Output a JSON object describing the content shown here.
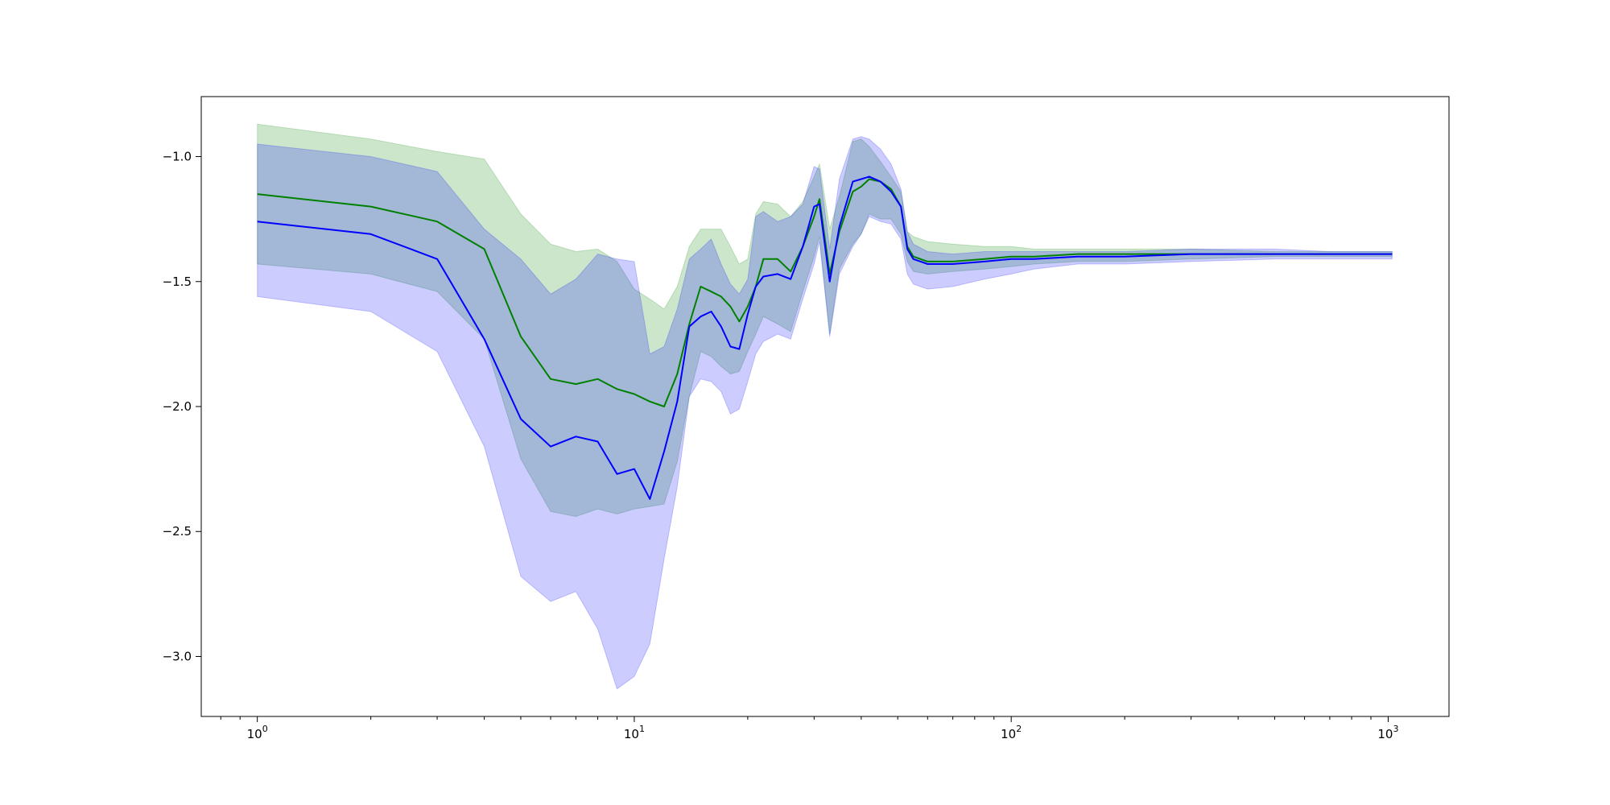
{
  "chart_data": {
    "type": "line",
    "title": "",
    "xlabel": "",
    "ylabel": "",
    "xscale": "log",
    "xlim": [
      0.71,
      1450
    ],
    "ylim": [
      -3.24,
      -0.76
    ],
    "grid": false,
    "legend": "none",
    "x_ticks": [
      {
        "value": 1,
        "base": "10",
        "exp": "0"
      },
      {
        "value": 10,
        "base": "10",
        "exp": "1"
      },
      {
        "value": 100,
        "base": "10",
        "exp": "2"
      },
      {
        "value": 1000,
        "base": "10",
        "exp": "3"
      }
    ],
    "y_ticks": [
      {
        "value": -1.0,
        "label": "−1.0"
      },
      {
        "value": -1.5,
        "label": "−1.5"
      },
      {
        "value": -2.0,
        "label": "−2.0"
      },
      {
        "value": -2.5,
        "label": "−2.5"
      },
      {
        "value": -3.0,
        "label": "−3.0"
      }
    ],
    "series": [
      {
        "color": "#008000",
        "band_color": "#008000",
        "band_opacity": 0.2,
        "x": [
          1,
          2,
          3,
          4,
          5,
          6,
          7,
          8,
          9,
          10,
          11,
          12,
          13,
          14,
          15,
          16,
          17,
          18,
          19,
          20,
          21,
          22,
          24,
          26,
          28,
          30,
          31,
          33,
          35,
          38,
          40,
          42,
          45,
          48,
          51,
          53,
          55,
          60,
          70,
          85,
          100,
          115,
          150,
          200,
          300,
          500,
          700,
          1024
        ],
        "y": [
          -1.15,
          -1.2,
          -1.26,
          -1.37,
          -1.72,
          -1.89,
          -1.91,
          -1.89,
          -1.93,
          -1.95,
          -1.98,
          -2.0,
          -1.87,
          -1.67,
          -1.52,
          -1.54,
          -1.56,
          -1.6,
          -1.66,
          -1.6,
          -1.52,
          -1.41,
          -1.41,
          -1.46,
          -1.36,
          -1.24,
          -1.17,
          -1.47,
          -1.3,
          -1.14,
          -1.12,
          -1.09,
          -1.1,
          -1.13,
          -1.2,
          -1.36,
          -1.4,
          -1.42,
          -1.42,
          -1.41,
          -1.4,
          -1.4,
          -1.39,
          -1.39,
          -1.39,
          -1.39,
          -1.39,
          -1.39
        ],
        "upper": [
          -0.87,
          -0.93,
          -0.98,
          -1.01,
          -1.23,
          -1.35,
          -1.38,
          -1.37,
          -1.42,
          -1.53,
          -1.57,
          -1.61,
          -1.52,
          -1.36,
          -1.29,
          -1.29,
          -1.29,
          -1.36,
          -1.43,
          -1.41,
          -1.23,
          -1.18,
          -1.19,
          -1.24,
          -1.18,
          -1.08,
          -1.03,
          -1.29,
          -1.16,
          -0.94,
          -0.93,
          -0.96,
          -1.02,
          -1.08,
          -1.14,
          -1.3,
          -1.32,
          -1.34,
          -1.35,
          -1.36,
          -1.36,
          -1.37,
          -1.37,
          -1.37,
          -1.37,
          -1.38,
          -1.38,
          -1.38
        ],
        "lower": [
          -1.43,
          -1.47,
          -1.54,
          -1.73,
          -2.21,
          -2.42,
          -2.44,
          -2.41,
          -2.43,
          -2.41,
          -2.4,
          -2.39,
          -2.22,
          -1.96,
          -1.78,
          -1.8,
          -1.84,
          -1.87,
          -1.86,
          -1.78,
          -1.71,
          -1.64,
          -1.67,
          -1.7,
          -1.54,
          -1.4,
          -1.32,
          -1.71,
          -1.45,
          -1.35,
          -1.31,
          -1.23,
          -1.25,
          -1.25,
          -1.31,
          -1.42,
          -1.46,
          -1.47,
          -1.46,
          -1.45,
          -1.44,
          -1.43,
          -1.42,
          -1.42,
          -1.41,
          -1.4,
          -1.4,
          -1.4
        ]
      },
      {
        "color": "#0000ff",
        "band_color": "#0000ff",
        "band_opacity": 0.2,
        "x": [
          1,
          2,
          3,
          4,
          5,
          6,
          7,
          8,
          9,
          10,
          11,
          12,
          13,
          14,
          15,
          16,
          17,
          18,
          19,
          20,
          21,
          22,
          24,
          26,
          28,
          30,
          31,
          33,
          35,
          38,
          40,
          42,
          45,
          48,
          51,
          53,
          55,
          60,
          70,
          85,
          100,
          115,
          150,
          200,
          300,
          500,
          700,
          1024
        ],
        "y": [
          -1.26,
          -1.31,
          -1.41,
          -1.73,
          -2.05,
          -2.16,
          -2.12,
          -2.14,
          -2.27,
          -2.25,
          -2.37,
          -2.18,
          -1.98,
          -1.68,
          -1.64,
          -1.62,
          -1.68,
          -1.76,
          -1.77,
          -1.63,
          -1.52,
          -1.48,
          -1.47,
          -1.49,
          -1.36,
          -1.2,
          -1.19,
          -1.5,
          -1.28,
          -1.1,
          -1.09,
          -1.08,
          -1.1,
          -1.14,
          -1.2,
          -1.37,
          -1.41,
          -1.43,
          -1.43,
          -1.42,
          -1.41,
          -1.41,
          -1.4,
          -1.4,
          -1.39,
          -1.39,
          -1.39,
          -1.39
        ],
        "upper": [
          -0.95,
          -1.0,
          -1.06,
          -1.29,
          -1.41,
          -1.55,
          -1.49,
          -1.39,
          -1.41,
          -1.42,
          -1.79,
          -1.76,
          -1.61,
          -1.41,
          -1.37,
          -1.33,
          -1.43,
          -1.51,
          -1.55,
          -1.49,
          -1.24,
          -1.22,
          -1.26,
          -1.24,
          -1.19,
          -1.04,
          -1.05,
          -1.37,
          -1.09,
          -0.93,
          -0.92,
          -0.93,
          -0.97,
          -1.03,
          -1.13,
          -1.3,
          -1.35,
          -1.38,
          -1.39,
          -1.38,
          -1.38,
          -1.38,
          -1.38,
          -1.38,
          -1.37,
          -1.37,
          -1.38,
          -1.38
        ],
        "lower": [
          -1.56,
          -1.62,
          -1.78,
          -2.16,
          -2.68,
          -2.78,
          -2.74,
          -2.89,
          -3.13,
          -3.08,
          -2.95,
          -2.61,
          -2.32,
          -1.96,
          -1.89,
          -1.9,
          -1.94,
          -2.03,
          -2.01,
          -1.9,
          -1.79,
          -1.74,
          -1.71,
          -1.73,
          -1.57,
          -1.43,
          -1.34,
          -1.72,
          -1.47,
          -1.36,
          -1.31,
          -1.24,
          -1.26,
          -1.27,
          -1.33,
          -1.47,
          -1.51,
          -1.53,
          -1.52,
          -1.49,
          -1.47,
          -1.45,
          -1.43,
          -1.43,
          -1.42,
          -1.41,
          -1.41,
          -1.41
        ]
      }
    ]
  }
}
